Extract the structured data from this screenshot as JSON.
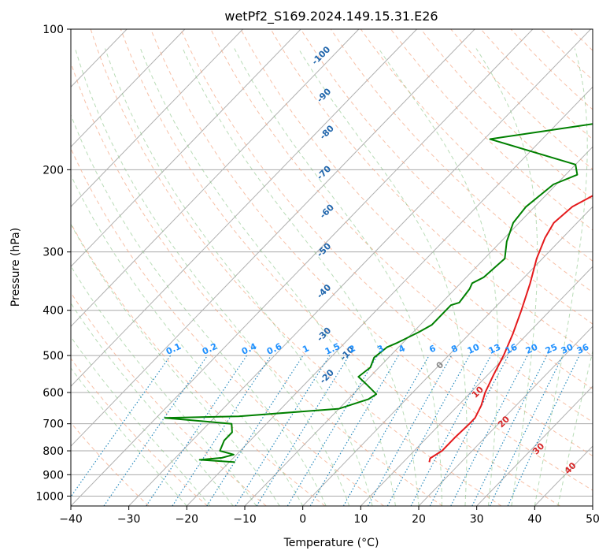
{
  "chart_data": {
    "type": "line",
    "title": "wetPf2_S169.2024.149.15.31.E26",
    "xlabel": "Temperature (°C)",
    "ylabel": "Pressure (hPa)",
    "xlim": [
      -40,
      50
    ],
    "ylim": [
      1050,
      100
    ],
    "y_scale": "log",
    "grid": true,
    "x_ticks": [
      -40,
      -30,
      -20,
      -10,
      0,
      10,
      20,
      30,
      40,
      50
    ],
    "x_tick_labels": [
      "−40",
      "−30",
      "−20",
      "−10",
      "0",
      "10",
      "20",
      "30",
      "40",
      "50"
    ],
    "y_ticks": [
      100,
      200,
      300,
      400,
      500,
      600,
      700,
      800,
      900,
      1000
    ],
    "y_tick_labels": [
      "100",
      "200",
      "300",
      "400",
      "500",
      "600",
      "700",
      "800",
      "900",
      "1000"
    ],
    "series": [
      {
        "color": "#e41a1c",
        "points": [
          [
            14.5,
            846
          ],
          [
            14.0,
            830
          ],
          [
            14.8,
            800
          ],
          [
            14.8,
            750
          ],
          [
            15.0,
            700
          ],
          [
            15.0,
            680
          ],
          [
            14.0,
            640
          ],
          [
            12.5,
            600
          ],
          [
            11.0,
            550
          ],
          [
            9.5,
            500
          ],
          [
            7.5,
            450
          ],
          [
            5.0,
            400
          ],
          [
            2.0,
            350
          ],
          [
            -1.0,
            310
          ],
          [
            -3.0,
            280
          ],
          [
            -4.0,
            260
          ],
          [
            -3.5,
            240
          ],
          [
            -1.5,
            225
          ],
          [
            4.0,
            200
          ],
          [
            10.0,
            180
          ],
          [
            13.0,
            165
          ],
          [
            15.0,
            150
          ],
          [
            17.5,
            135
          ],
          [
            20.5,
            125
          ],
          [
            22.0,
            115
          ],
          [
            22.0,
            110
          ],
          [
            23.5,
            104
          ],
          [
            25.0,
            100
          ]
        ]
      },
      {
        "color": "#008000",
        "points": [
          [
            -19.0,
            846
          ],
          [
            -25.5,
            836
          ],
          [
            -22.0,
            828
          ],
          [
            -20.5,
            815
          ],
          [
            -23.5,
            800
          ],
          [
            -24.5,
            760
          ],
          [
            -24.5,
            730
          ],
          [
            -26.0,
            700
          ],
          [
            -38.5,
            680
          ],
          [
            -26.0,
            675
          ],
          [
            -10.0,
            650
          ],
          [
            -6.5,
            620
          ],
          [
            -6.0,
            605
          ],
          [
            -9.5,
            575
          ],
          [
            -12.0,
            555
          ],
          [
            -11.5,
            530
          ],
          [
            -12.5,
            505
          ],
          [
            -12.0,
            480
          ],
          [
            -11.0,
            470
          ],
          [
            -9.0,
            445
          ],
          [
            -8.0,
            430
          ],
          [
            -8.0,
            390
          ],
          [
            -7.0,
            385
          ],
          [
            -7.5,
            360
          ],
          [
            -8.0,
            350
          ],
          [
            -7.0,
            340
          ],
          [
            -6.5,
            310
          ],
          [
            -9.0,
            285
          ],
          [
            -11.0,
            260
          ],
          [
            -11.5,
            240
          ],
          [
            -10.5,
            215
          ],
          [
            -8.0,
            205
          ],
          [
            -10.0,
            195
          ],
          [
            -29.0,
            172
          ],
          [
            -20.5,
            165
          ],
          [
            -8.0,
            155
          ],
          [
            -6.5,
            140
          ],
          [
            -7.0,
            130
          ],
          [
            -3.5,
            120
          ],
          [
            -1.5,
            110
          ],
          [
            1.0,
            100
          ]
        ]
      }
    ],
    "dry_adiabat_labels": [
      "-100",
      "-90",
      "-80",
      "-70",
      "-60",
      "-50",
      "-40",
      "-30",
      "-20",
      "-10",
      "0",
      "10",
      "20",
      "30",
      "40"
    ],
    "mixing_ratio_labels": [
      "0.1",
      "0.2",
      "0.4",
      "0.6",
      "1",
      "1.5",
      "2",
      "3",
      "4",
      "6",
      "8",
      "10",
      "13",
      "16",
      "20",
      "25",
      "30",
      "36"
    ]
  }
}
